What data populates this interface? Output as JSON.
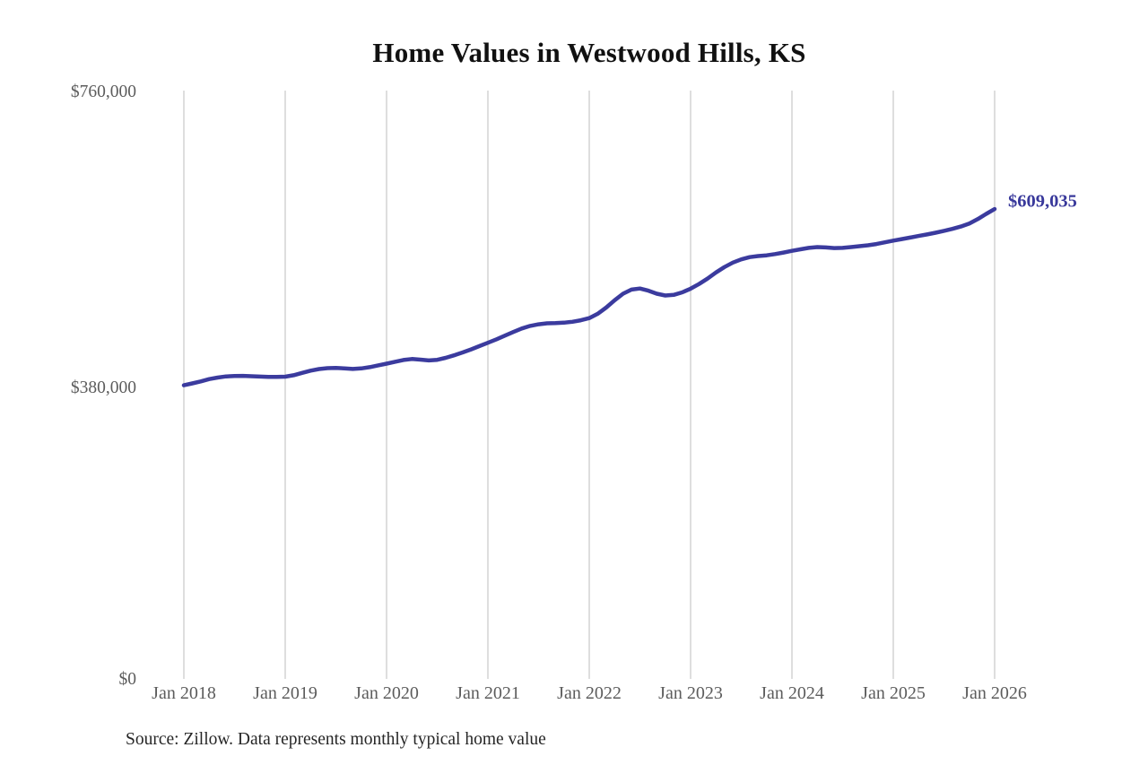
{
  "chart": {
    "title": "Home Values in Westwood Hills, KS",
    "annotation_label": "$609,035",
    "source_note": "Source: Zillow. Data represents monthly typical home value",
    "colors": {
      "line": "#3b3b9e",
      "annotation": "#39399b",
      "grid": "#cccccc",
      "axis_text": "#5c5c5c",
      "title_text": "#111111"
    }
  },
  "chart_data": {
    "type": "line",
    "title": "Home Values in Westwood Hills, KS",
    "xlabel": "",
    "ylabel": "",
    "ylim": [
      0,
      760000
    ],
    "y_ticks": [
      0,
      380000,
      760000
    ],
    "y_tick_labels": [
      "$0",
      "$380,000",
      "$760,000"
    ],
    "x_tick_labels": [
      "Jan 2018",
      "Jan 2019",
      "Jan 2020",
      "Jan 2021",
      "Jan 2022",
      "Jan 2023",
      "Jan 2024",
      "Jan 2025",
      "Jan 2026"
    ],
    "grid": "vertical-only",
    "legend": "none",
    "x_start": "2018-01",
    "x_end": "2026-01",
    "x_frequency": "monthly",
    "annotation": {
      "text": "$609,035",
      "value": 609035,
      "at": "2026-01"
    },
    "source": "Source: Zillow. Data represents monthly typical home value",
    "series": [
      {
        "name": "Typical home value",
        "values": [
          381000,
          383500,
          386000,
          389000,
          391000,
          392500,
          393000,
          393200,
          392800,
          392300,
          392000,
          392000,
          392200,
          394000,
          397000,
          400000,
          402000,
          403200,
          403500,
          402800,
          402200,
          402800,
          404500,
          406800,
          409000,
          411500,
          413800,
          415000,
          414200,
          413200,
          414000,
          416500,
          419800,
          423500,
          427500,
          431800,
          436000,
          440500,
          445200,
          450000,
          454500,
          457800,
          460000,
          461200,
          461500,
          462000,
          463200,
          465200,
          468000,
          473500,
          481500,
          491000,
          499500,
          504800,
          506200,
          503500,
          499500,
          497200,
          498000,
          501200,
          506000,
          512000,
          519000,
          527000,
          534000,
          539800,
          544000,
          546800,
          548200,
          549200,
          550800,
          552800,
          555000,
          557000,
          558800,
          559800,
          559400,
          558600,
          558800,
          559800,
          561000,
          562200,
          563800,
          566000,
          568200,
          570200,
          572200,
          574200,
          576200,
          578400,
          580800,
          583400,
          586400,
          590400,
          596000,
          602800,
          609035
        ]
      }
    ]
  }
}
